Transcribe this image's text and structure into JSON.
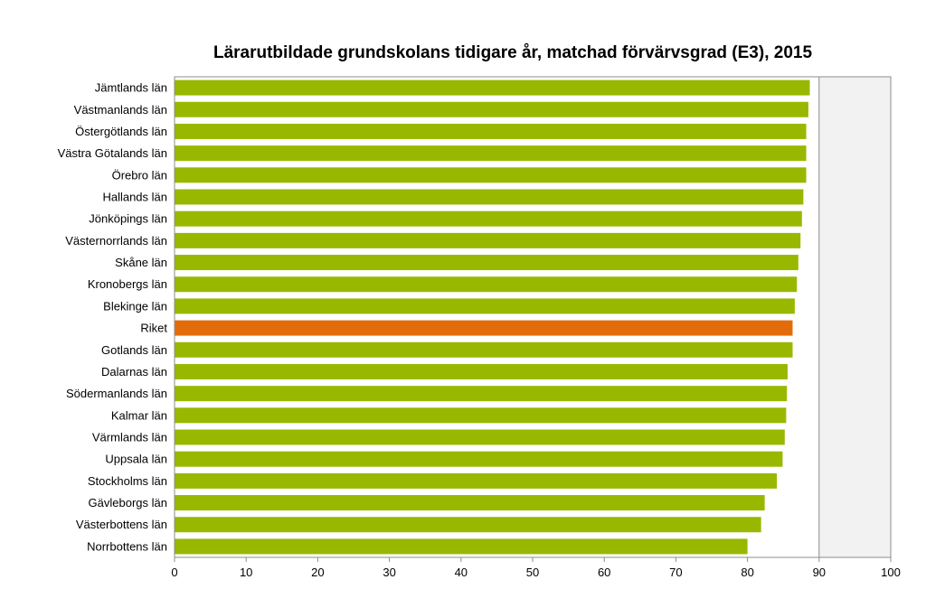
{
  "chart_data": {
    "type": "bar",
    "orientation": "horizontal",
    "title": "Lärarutbildade grundskolans tidigare år, matchad förvärvsgrad (E3), 2015",
    "xlabel": "",
    "ylabel": "",
    "xlim": [
      0,
      100
    ],
    "xticks": [
      0,
      10,
      20,
      30,
      40,
      50,
      60,
      70,
      80,
      90,
      100
    ],
    "grid": false,
    "shaded_region": [
      90,
      100
    ],
    "categories": [
      "Jämtlands län",
      "Västmanlands län",
      "Östergötlands län",
      "Västra Götalands län",
      "Örebro län",
      "Hallands län",
      "Jönköpings län",
      "Västernorrlands län",
      "Skåne län",
      "Kronobergs län",
      "Blekinge län",
      "Riket",
      "Gotlands län",
      "Dalarnas län",
      "Södermanlands län",
      "Kalmar län",
      "Värmlands län",
      "Uppsala län",
      "Stockholms län",
      "Gävleborgs län",
      "Västerbottens län",
      "Norrbottens län"
    ],
    "values": [
      88.7,
      88.5,
      88.2,
      88.2,
      88.2,
      87.8,
      87.6,
      87.4,
      87.1,
      86.9,
      86.6,
      86.3,
      86.3,
      85.6,
      85.5,
      85.4,
      85.2,
      84.9,
      84.1,
      82.4,
      81.9,
      80.0
    ],
    "highlight_category": "Riket",
    "colors": {
      "bar": "#98b800",
      "highlight": "#e36c0a",
      "shade": "#f2f2f2"
    }
  }
}
